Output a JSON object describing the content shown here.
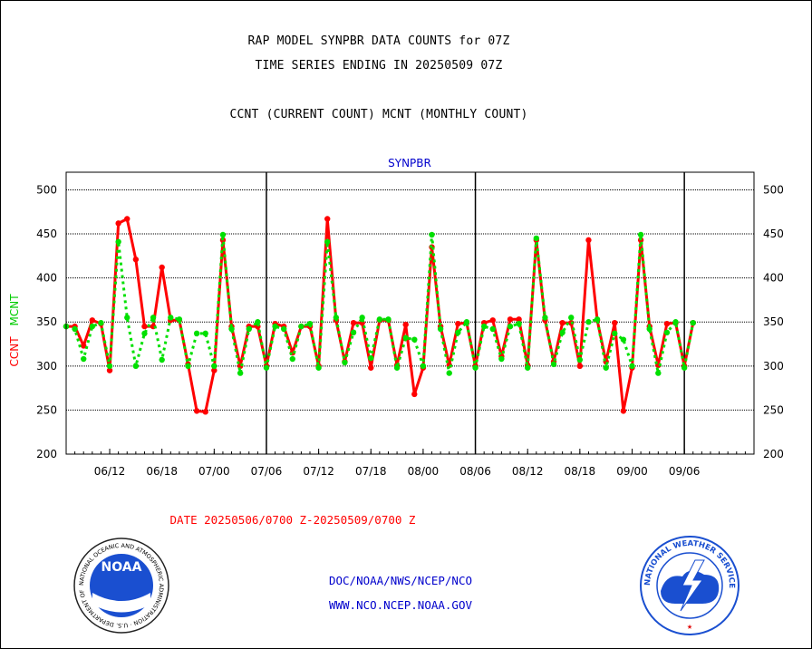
{
  "titles": {
    "line1": "RAP MODEL SYNPBR DATA COUNTS for 07Z",
    "line2": "TIME SERIES ENDING IN 20250509 07Z",
    "line3": "CCNT (CURRENT COUNT) MCNT (MONTHLY COUNT)"
  },
  "date_range": "DATE 20250506/0700 Z-20250509/0700 Z",
  "footer": {
    "org": "DOC/NOAA/NWS/NCEP/NCO",
    "url": "WWW.NCO.NCEP.NOAA.GOV"
  },
  "logos": {
    "noaa": {
      "label": "NOAA",
      "ring_text": "NATIONAL OCEANIC AND ATMOSPHERIC ADMINISTRATION · U.S. DEPARTMENT OF COMMERCE ·"
    },
    "nws": {
      "ring_text": "NATIONAL WEATHER SERVICE"
    }
  },
  "colors": {
    "ccnt": "#ff0000",
    "mcnt": "#00e000",
    "panel_title": "#0000cc",
    "footer_text": "#0000cc",
    "date_text": "#ff0000"
  },
  "chart_data": {
    "type": "line",
    "title": "SYNPBR",
    "ylabel_left": [
      "CCNT",
      "MCNT"
    ],
    "ylim": [
      200,
      520
    ],
    "yticks": [
      200,
      250,
      300,
      350,
      400,
      450,
      500
    ],
    "xlim": [
      0,
      79
    ],
    "xtick_labels": [
      {
        "x": 5,
        "label": "06/12"
      },
      {
        "x": 11,
        "label": "06/18"
      },
      {
        "x": 17,
        "label": "07/00"
      },
      {
        "x": 23,
        "label": "07/06"
      },
      {
        "x": 29,
        "label": "07/12"
      },
      {
        "x": 35,
        "label": "07/18"
      },
      {
        "x": 41,
        "label": "08/00"
      },
      {
        "x": 47,
        "label": "08/06"
      },
      {
        "x": 53,
        "label": "08/12"
      },
      {
        "x": 59,
        "label": "08/18"
      },
      {
        "x": 65,
        "label": "09/00"
      },
      {
        "x": 71,
        "label": "09/06"
      }
    ],
    "day_boundaries": [
      23,
      47,
      71
    ],
    "grid": true,
    "series": [
      {
        "name": "CCNT",
        "style": "solid",
        "values": [
          345,
          345,
          323,
          352,
          348,
          295,
          462,
          467,
          421,
          345,
          345,
          412,
          352,
          352,
          302,
          249,
          248,
          295,
          443,
          345,
          300,
          345,
          345,
          300,
          348,
          345,
          315,
          345,
          345,
          300,
          467,
          352,
          305,
          349,
          349,
          298,
          352,
          352,
          301,
          347,
          268,
          298,
          435,
          345,
          301,
          348,
          349,
          300,
          349,
          352,
          311,
          353,
          353,
          301,
          443,
          352,
          305,
          349,
          349,
          300,
          443,
          352,
          305,
          349,
          249,
          298,
          443,
          345,
          301,
          348,
          349,
          300,
          349
        ]
      },
      {
        "name": "MCNT",
        "style": "dotted",
        "values": [
          345,
          342,
          308,
          345,
          349,
          300,
          441,
          355,
          300,
          337,
          355,
          307,
          355,
          353,
          300,
          337,
          337,
          300,
          449,
          342,
          292,
          342,
          350,
          298,
          345,
          342,
          308,
          345,
          348,
          298,
          441,
          355,
          304,
          338,
          355,
          309,
          353,
          353,
          298,
          332,
          330,
          300,
          449,
          342,
          292,
          338,
          350,
          298,
          345,
          342,
          308,
          345,
          348,
          298,
          445,
          355,
          302,
          338,
          355,
          307,
          350,
          353,
          298,
          337,
          330,
          300,
          449,
          342,
          292,
          338,
          350,
          298,
          349
        ]
      }
    ]
  }
}
